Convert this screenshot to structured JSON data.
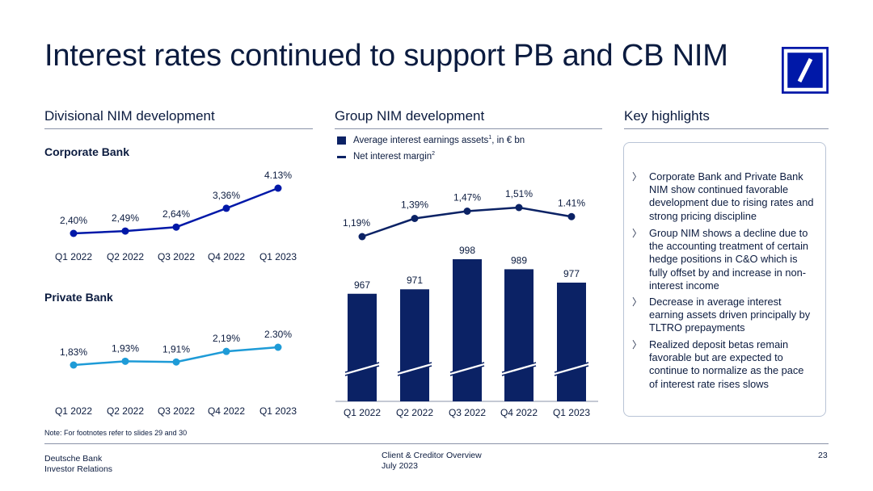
{
  "title": "Interest rates continued to support PB and CB NIM",
  "sections": {
    "divisional": "Divisional NIM development",
    "group": "Group NIM development",
    "highlights": "Key highlights"
  },
  "colors": {
    "navy": "#0018a8",
    "dark_navy": "#0b2265",
    "light_blue": "#1e9bd7",
    "text": "#0b1b3f"
  },
  "highlights": [
    "Corporate Bank and Private Bank NIM show continued favorable development due to rising rates and strong pricing discipline",
    "Group NIM shows a decline due to the accounting treatment of certain hedge positions in C&O which is fully offset by and increase in non-interest income",
    "Decrease in average interest earning assets driven principally by TLTRO prepayments",
    "Realized deposit betas remain favorable but are expected to continue to normalize as the pace of interest rate rises slows"
  ],
  "bullet_marker": "〉",
  "legend": {
    "bars": "Average interest earnings assets",
    "bars_sup": "1",
    "bars_suffix": ", in € bn",
    "line": "Net interest margin",
    "line_sup": "2"
  },
  "note": "Note: For footnotes refer to slides 29 and 30",
  "footer": {
    "left1": "Deutsche Bank",
    "left2": "Investor Relations",
    "center1": "Client & Creditor Overview",
    "center2": "July 2023",
    "page": "23"
  },
  "chart_data": [
    {
      "type": "line",
      "title": "Corporate Bank",
      "categories": [
        "Q1 2022",
        "Q2 2022",
        "Q3 2022",
        "Q4 2022",
        "Q1 2023"
      ],
      "values": [
        2.4,
        2.49,
        2.64,
        3.36,
        4.13
      ],
      "labels": [
        "2,40%",
        "2,49%",
        "2,64%",
        "3,36%",
        "4.13%"
      ],
      "color": "#0018a8"
    },
    {
      "type": "line",
      "title": "Private Bank",
      "categories": [
        "Q1 2022",
        "Q2 2022",
        "Q3 2022",
        "Q4 2022",
        "Q1 2023"
      ],
      "values": [
        1.83,
        1.93,
        1.91,
        2.19,
        2.3
      ],
      "labels": [
        "1,83%",
        "1,93%",
        "1,91%",
        "2,19%",
        "2.30%"
      ],
      "color": "#1e9bd7"
    },
    {
      "type": "bar",
      "categories": [
        "Q1 2022",
        "Q2 2022",
        "Q3 2022",
        "Q4 2022",
        "Q1 2023"
      ],
      "series": [
        {
          "name": "Average interest earnings assets",
          "values": [
            967,
            971,
            998,
            989,
            977
          ],
          "labels": [
            "967",
            "971",
            "998",
            "989",
            "977"
          ],
          "color": "#0b2265"
        },
        {
          "name": "Net interest margin",
          "type": "line",
          "values": [
            1.19,
            1.39,
            1.47,
            1.51,
            1.41
          ],
          "labels": [
            "1,19%",
            "1,39%",
            "1,47%",
            "1,51%",
            "1.41%"
          ],
          "color": "#0b2265"
        }
      ],
      "axis_break": true
    }
  ]
}
